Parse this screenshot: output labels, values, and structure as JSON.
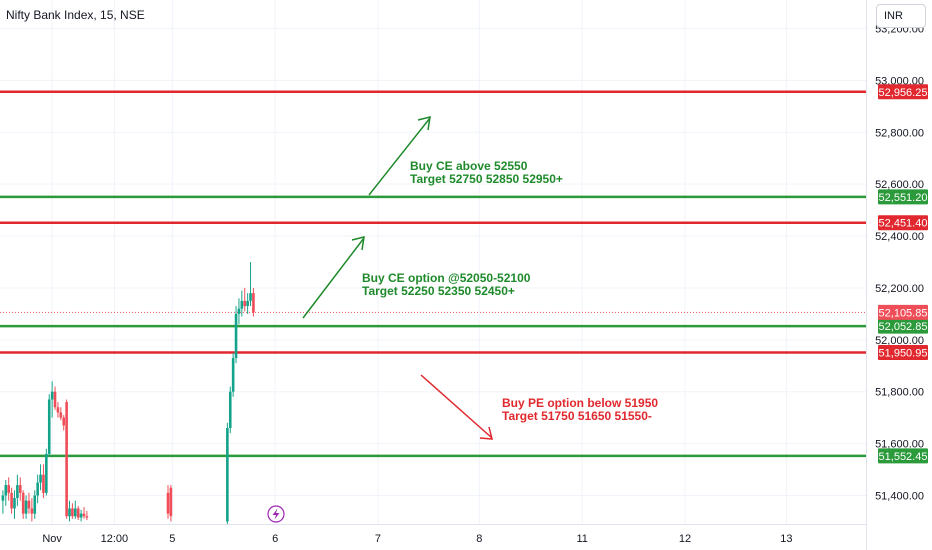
{
  "header": {
    "title": "Nifty Bank Index, 15, NSE",
    "currency": "INR"
  },
  "colors": {
    "up": "#13a38a",
    "down": "#ef4d58",
    "green_line": "#2a9a3a",
    "red_line": "#e0282e",
    "grid": "#f0f3fa",
    "axis_text": "#131722"
  },
  "chart_data": {
    "type": "candlestick",
    "title": "Nifty Bank Index, 15, NSE",
    "currency": "INR",
    "y_ticks": [
      51400,
      51600,
      51800,
      52000,
      52200,
      52400,
      52600,
      52800,
      53000,
      53200
    ],
    "y_tick_labels": [
      "51,400.00",
      "51,600.00",
      "51,800.00",
      "52,000.00",
      "52,200.00",
      "52,400.00",
      "52,600.00",
      "52,800.00",
      "53,000.00",
      "53,200.00"
    ],
    "ylim": [
      51290,
      53310
    ],
    "x_tick_labels": [
      "Nov",
      "12:00",
      "5",
      "6",
      "7",
      "8",
      "11",
      "12",
      "13"
    ],
    "x_tick_index": [
      28,
      71,
      111,
      182,
      253,
      323,
      394,
      465,
      535
    ],
    "xlim": [
      -8,
      590
    ],
    "levels": [
      {
        "value": 52956.25,
        "label": "52,956.25",
        "kind": "resistance"
      },
      {
        "value": 52551.2,
        "label": "52,551.20",
        "kind": "support"
      },
      {
        "value": 52451.4,
        "label": "52,451.40",
        "kind": "resistance"
      },
      {
        "value": 52052.85,
        "label": "52,052.85",
        "kind": "support"
      },
      {
        "value": 51950.95,
        "label": "51,950.95",
        "kind": "resistance"
      },
      {
        "value": 51552.45,
        "label": "51,552.45",
        "kind": "support"
      }
    ],
    "last_price": {
      "value": 52105.85,
      "label": "52,105.85"
    },
    "candles": [
      {
        "i": -6,
        "o": 51380,
        "h": 51420,
        "l": 51330,
        "c": 51400
      },
      {
        "i": -4,
        "o": 51400,
        "h": 51460,
        "l": 51360,
        "c": 51440
      },
      {
        "i": -2,
        "o": 51440,
        "h": 51470,
        "l": 51380,
        "c": 51410
      },
      {
        "i": 0,
        "o": 51410,
        "h": 51430,
        "l": 51330,
        "c": 51350
      },
      {
        "i": 2,
        "o": 51350,
        "h": 51420,
        "l": 51310,
        "c": 51390
      },
      {
        "i": 4,
        "o": 51390,
        "h": 51480,
        "l": 51360,
        "c": 51440
      },
      {
        "i": 6,
        "o": 51440,
        "h": 51470,
        "l": 51380,
        "c": 51410
      },
      {
        "i": 8,
        "o": 51410,
        "h": 51420,
        "l": 51310,
        "c": 51330
      },
      {
        "i": 10,
        "o": 51330,
        "h": 51400,
        "l": 51310,
        "c": 51380
      },
      {
        "i": 12,
        "o": 51380,
        "h": 51410,
        "l": 51330,
        "c": 51350
      },
      {
        "i": 14,
        "o": 51350,
        "h": 51390,
        "l": 51300,
        "c": 51330
      },
      {
        "i": 16,
        "o": 51330,
        "h": 51420,
        "l": 51310,
        "c": 51400
      },
      {
        "i": 18,
        "o": 51400,
        "h": 51480,
        "l": 51370,
        "c": 51450
      },
      {
        "i": 20,
        "o": 51450,
        "h": 51520,
        "l": 51420,
        "c": 51480
      },
      {
        "i": 22,
        "o": 51480,
        "h": 51520,
        "l": 51390,
        "c": 51410
      },
      {
        "i": 24,
        "o": 51410,
        "h": 51580,
        "l": 51400,
        "c": 51560
      },
      {
        "i": 26,
        "o": 51560,
        "h": 51790,
        "l": 51550,
        "c": 51770
      },
      {
        "i": 28,
        "o": 51770,
        "h": 51840,
        "l": 51700,
        "c": 51800
      },
      {
        "i": 30,
        "o": 51800,
        "h": 51820,
        "l": 51730,
        "c": 51740
      },
      {
        "i": 32,
        "o": 51740,
        "h": 51760,
        "l": 51700,
        "c": 51720
      },
      {
        "i": 34,
        "o": 51720,
        "h": 51740,
        "l": 51690,
        "c": 51700
      },
      {
        "i": 36,
        "o": 51700,
        "h": 51710,
        "l": 51650,
        "c": 51670
      },
      {
        "i": 38,
        "o": 51760,
        "h": 51770,
        "l": 51310,
        "c": 51320
      },
      {
        "i": 40,
        "o": 51320,
        "h": 51380,
        "l": 51300,
        "c": 51350
      },
      {
        "i": 42,
        "o": 51350,
        "h": 51370,
        "l": 51310,
        "c": 51320
      },
      {
        "i": 44,
        "o": 51320,
        "h": 51380,
        "l": 51310,
        "c": 51350
      },
      {
        "i": 46,
        "o": 51350,
        "h": 51360,
        "l": 51305,
        "c": 51315
      },
      {
        "i": 48,
        "o": 51315,
        "h": 51345,
        "l": 51300,
        "c": 51330
      },
      {
        "i": 50,
        "o": 51330,
        "h": 51355,
        "l": 51310,
        "c": 51320
      },
      {
        "i": 52,
        "o": 51320,
        "h": 51340,
        "l": 51305,
        "c": 51315
      },
      {
        "i": 108,
        "o": 51410,
        "h": 51440,
        "l": 51310,
        "c": 51330
      },
      {
        "i": 110,
        "o": 51430,
        "h": 51440,
        "l": 51300,
        "c": 51320
      },
      {
        "i": 149,
        "o": 51300,
        "h": 51680,
        "l": 51290,
        "c": 51660
      },
      {
        "i": 151,
        "o": 51660,
        "h": 51820,
        "l": 51640,
        "c": 51800
      },
      {
        "i": 153,
        "o": 51800,
        "h": 51950,
        "l": 51780,
        "c": 51930
      },
      {
        "i": 155,
        "o": 51930,
        "h": 52130,
        "l": 51910,
        "c": 52100
      },
      {
        "i": 157,
        "o": 52100,
        "h": 52160,
        "l": 52060,
        "c": 52120
      },
      {
        "i": 159,
        "o": 52120,
        "h": 52190,
        "l": 52090,
        "c": 52150
      },
      {
        "i": 161,
        "o": 52150,
        "h": 52200,
        "l": 52110,
        "c": 52130
      },
      {
        "i": 163,
        "o": 52130,
        "h": 52180,
        "l": 52100,
        "c": 52150
      },
      {
        "i": 165,
        "o": 52150,
        "h": 52300,
        "l": 52130,
        "c": 52180
      },
      {
        "i": 167,
        "o": 52180,
        "h": 52200,
        "l": 52090,
        "c": 52106
      }
    ]
  },
  "annotations": [
    {
      "text_line1": "Buy CE above 52550",
      "text_line2": "Target 52750 52850 52950+",
      "color": "green"
    },
    {
      "text_line1": "Buy CE option @52050-52100",
      "text_line2": "Target 52250 52350 52450+",
      "color": "green"
    },
    {
      "text_line1": "Buy PE option below 51950",
      "text_line2": "Target 51750 51650 51550-",
      "color": "red"
    }
  ]
}
